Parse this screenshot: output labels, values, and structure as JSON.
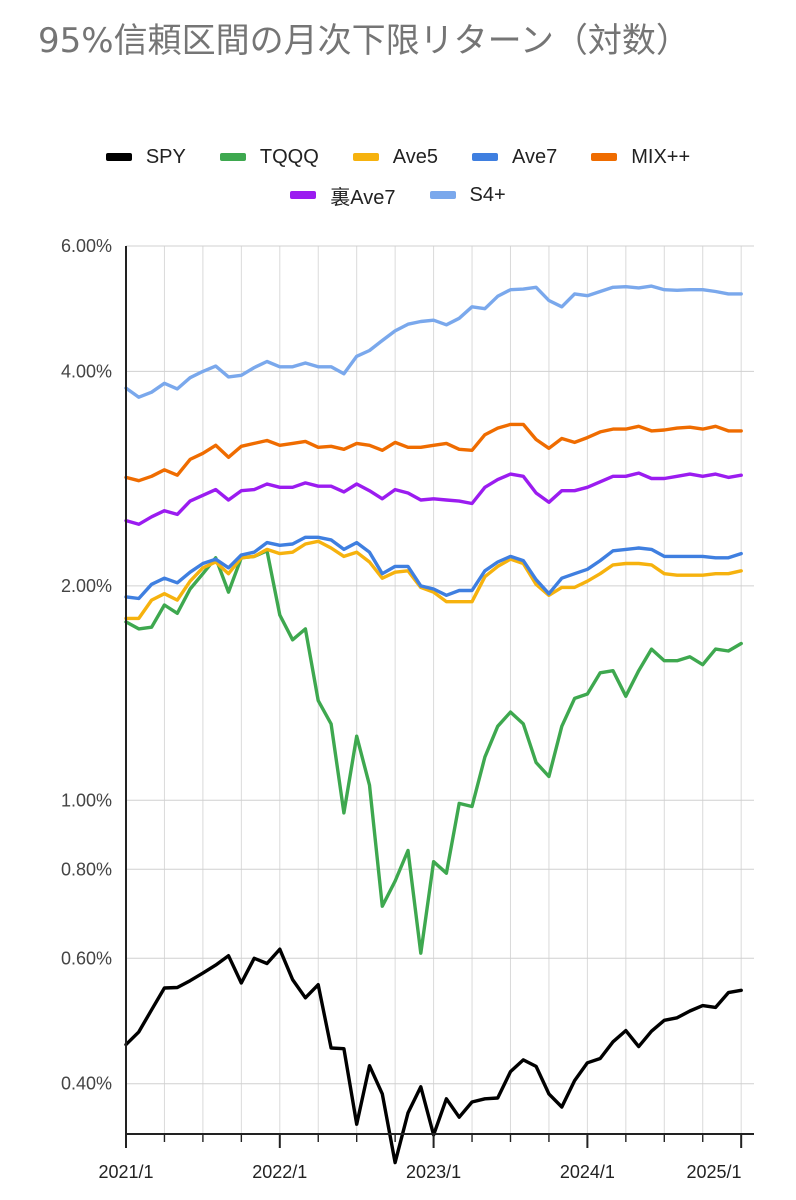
{
  "chart_data": {
    "type": "line",
    "title": "95%信頼区間の月次下限リターン（対数）",
    "y_scale": "log",
    "ylim": [
      0.0034,
      0.06
    ],
    "y_ticks": [
      0.004,
      0.006,
      0.008,
      0.01,
      0.02,
      0.04,
      0.06
    ],
    "y_tick_labels": [
      "0.40%",
      "0.60%",
      "0.80%",
      "1.00%",
      "2.00%",
      "4.00%",
      "6.00%"
    ],
    "x_range": [
      "2021/1",
      "2025/2"
    ],
    "x_ticks": [
      "2021/1",
      "2022/1",
      "2023/1",
      "2024/1",
      "2025/1"
    ],
    "legend_position": "top",
    "grid": true,
    "months": [
      "2021/1",
      "2021/2",
      "2021/3",
      "2021/4",
      "2021/5",
      "2021/6",
      "2021/7",
      "2021/8",
      "2021/9",
      "2021/10",
      "2021/11",
      "2021/12",
      "2022/1",
      "2022/2",
      "2022/3",
      "2022/4",
      "2022/5",
      "2022/6",
      "2022/7",
      "2022/8",
      "2022/9",
      "2022/10",
      "2022/11",
      "2022/12",
      "2023/1",
      "2023/2",
      "2023/3",
      "2023/4",
      "2023/5",
      "2023/6",
      "2023/7",
      "2023/8",
      "2023/9",
      "2023/10",
      "2023/11",
      "2023/12",
      "2024/1",
      "2024/2",
      "2024/3",
      "2024/4",
      "2024/5",
      "2024/6",
      "2024/7",
      "2024/8",
      "2024/9",
      "2024/10",
      "2024/11",
      "2024/12",
      "2025/1"
    ],
    "series": [
      {
        "name": "SPY",
        "color": "#000000",
        "values": [
          0.00454,
          0.00473,
          0.00508,
          0.00545,
          0.00546,
          0.00558,
          0.00572,
          0.00587,
          0.00605,
          0.00554,
          0.006,
          0.0059,
          0.00618,
          0.0056,
          0.00528,
          0.00551,
          0.00449,
          0.00448,
          0.00351,
          0.00424,
          0.00387,
          0.0031,
          0.00364,
          0.00396,
          0.00339,
          0.00381,
          0.00359,
          0.00377,
          0.00381,
          0.00382,
          0.00416,
          0.00432,
          0.00423,
          0.00387,
          0.00371,
          0.00404,
          0.00428,
          0.00434,
          0.00458,
          0.00475,
          0.00451,
          0.00474,
          0.00491,
          0.00495,
          0.00506,
          0.00515,
          0.00512,
          0.00537,
          0.00541
        ]
      },
      {
        "name": "TQQQ",
        "color": "#3ea84f",
        "values": [
          0.0178,
          0.0174,
          0.0175,
          0.0188,
          0.0183,
          0.0198,
          0.0208,
          0.0219,
          0.0196,
          0.0219,
          0.022,
          0.0224,
          0.0182,
          0.0168,
          0.0174,
          0.0138,
          0.0128,
          0.0096,
          0.0123,
          0.0105,
          0.0071,
          0.0077,
          0.0085,
          0.0061,
          0.0082,
          0.0079,
          0.0099,
          0.0098,
          0.0115,
          0.0127,
          0.0133,
          0.0128,
          0.0113,
          0.0108,
          0.0127,
          0.0139,
          0.0141,
          0.0151,
          0.0152,
          0.014,
          0.0152,
          0.0163,
          0.0157,
          0.0157,
          0.0159,
          0.0155,
          0.0163,
          0.0162,
          0.0166
        ]
      },
      {
        "name": "Ave5",
        "color": "#f6b20e",
        "values": [
          0.018,
          0.018,
          0.0191,
          0.0195,
          0.0191,
          0.0203,
          0.0212,
          0.0216,
          0.0208,
          0.0219,
          0.022,
          0.0225,
          0.0222,
          0.0223,
          0.0229,
          0.0231,
          0.0226,
          0.022,
          0.0223,
          0.0216,
          0.0205,
          0.0209,
          0.021,
          0.0199,
          0.0196,
          0.019,
          0.019,
          0.019,
          0.0206,
          0.0213,
          0.0218,
          0.0215,
          0.0201,
          0.0194,
          0.0199,
          0.0199,
          0.0203,
          0.0208,
          0.0214,
          0.0215,
          0.0215,
          0.0214,
          0.0208,
          0.0207,
          0.0207,
          0.0207,
          0.0208,
          0.0208,
          0.021
        ]
      },
      {
        "name": "Ave7",
        "color": "#3f7fe0",
        "values": [
          0.0193,
          0.0192,
          0.0201,
          0.0205,
          0.0202,
          0.0209,
          0.0215,
          0.0218,
          0.0212,
          0.0221,
          0.0223,
          0.023,
          0.0228,
          0.0229,
          0.0234,
          0.0234,
          0.0232,
          0.0225,
          0.023,
          0.0223,
          0.0208,
          0.0213,
          0.0213,
          0.02,
          0.0198,
          0.0194,
          0.0197,
          0.0197,
          0.021,
          0.0216,
          0.022,
          0.0217,
          0.0204,
          0.0195,
          0.0205,
          0.0208,
          0.0211,
          0.0217,
          0.0224,
          0.0225,
          0.0226,
          0.0225,
          0.022,
          0.022,
          0.022,
          0.022,
          0.0219,
          0.0219,
          0.0222
        ]
      },
      {
        "name": "MIX++",
        "color": "#ef6c00",
        "values": [
          0.0284,
          0.0281,
          0.0285,
          0.0291,
          0.0286,
          0.0301,
          0.0307,
          0.0315,
          0.0303,
          0.0314,
          0.0317,
          0.032,
          0.0315,
          0.0317,
          0.0319,
          0.0313,
          0.0314,
          0.0311,
          0.0317,
          0.0315,
          0.031,
          0.0318,
          0.0313,
          0.0313,
          0.0315,
          0.0317,
          0.0311,
          0.031,
          0.0326,
          0.0333,
          0.0337,
          0.0337,
          0.0321,
          0.0312,
          0.0322,
          0.0318,
          0.0323,
          0.0329,
          0.0332,
          0.0332,
          0.0335,
          0.033,
          0.0331,
          0.0333,
          0.0334,
          0.0332,
          0.0335,
          0.033,
          0.033
        ]
      },
      {
        "name": "裏Ave7",
        "color": "#9b1cf0",
        "values": [
          0.0247,
          0.0244,
          0.025,
          0.0255,
          0.0252,
          0.0263,
          0.0268,
          0.0273,
          0.0264,
          0.0272,
          0.0273,
          0.0278,
          0.0275,
          0.0275,
          0.0279,
          0.0276,
          0.0276,
          0.0271,
          0.0278,
          0.0272,
          0.0265,
          0.0273,
          0.027,
          0.0264,
          0.0265,
          0.0264,
          0.0263,
          0.0261,
          0.0275,
          0.0282,
          0.0287,
          0.0285,
          0.027,
          0.0262,
          0.0272,
          0.0272,
          0.0275,
          0.028,
          0.0285,
          0.0285,
          0.0288,
          0.0283,
          0.0283,
          0.0285,
          0.0287,
          0.0285,
          0.0287,
          0.0284,
          0.0286
        ]
      },
      {
        "name": "S4+",
        "color": "#7aa8ec",
        "values": [
          0.0379,
          0.0368,
          0.0374,
          0.0385,
          0.0378,
          0.0392,
          0.04,
          0.0407,
          0.0393,
          0.0395,
          0.0405,
          0.0413,
          0.0406,
          0.0406,
          0.0411,
          0.0406,
          0.0406,
          0.0397,
          0.042,
          0.0428,
          0.0442,
          0.0456,
          0.0466,
          0.047,
          0.0472,
          0.0465,
          0.0475,
          0.0493,
          0.049,
          0.051,
          0.0521,
          0.0522,
          0.0525,
          0.0503,
          0.0493,
          0.0514,
          0.0511,
          0.0518,
          0.0525,
          0.0526,
          0.0524,
          0.0527,
          0.0521,
          0.052,
          0.0521,
          0.0521,
          0.0518,
          0.0514,
          0.0514
        ]
      }
    ]
  }
}
